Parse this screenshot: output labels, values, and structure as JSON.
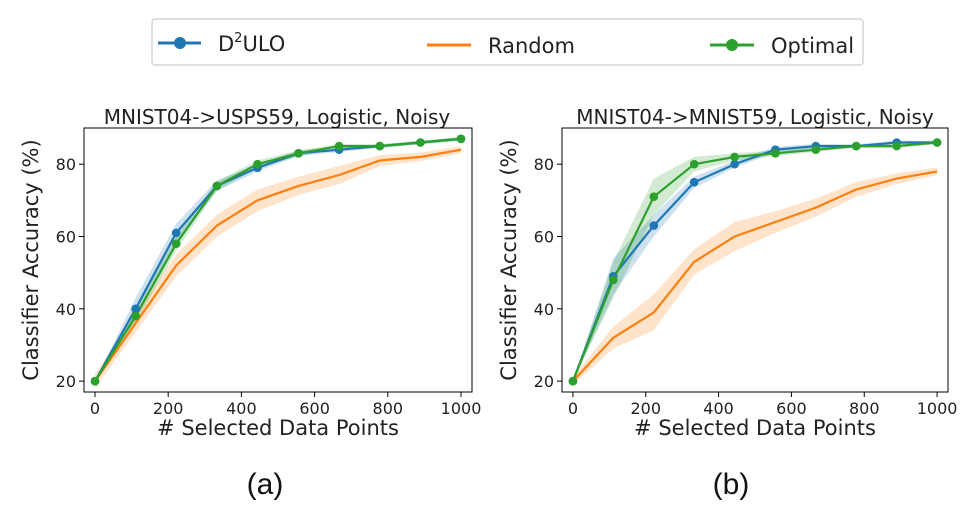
{
  "legend": {
    "items": [
      {
        "label_base": "D",
        "label_sup": "2",
        "label_rest": "ULO",
        "color": "#1f77b4",
        "marker": true
      },
      {
        "label": "Random",
        "color": "#ff7f0e",
        "marker": false
      },
      {
        "label": "Optimal",
        "color": "#2ca02c",
        "marker": true
      }
    ]
  },
  "colors": {
    "d2ulo": "#1f77b4",
    "random": "#ff7f0e",
    "optimal": "#2ca02c"
  },
  "chart_data": [
    {
      "type": "line",
      "title": "MNIST04->USPS59, Logistic, Noisy",
      "xlabel": "# Selected Data Points",
      "ylabel": "Classifier Accuracy (%)",
      "caption": "(a)",
      "xlim": [
        -30,
        1030
      ],
      "ylim": [
        17,
        90
      ],
      "xticks": [
        0,
        200,
        400,
        600,
        800,
        1000
      ],
      "yticks": [
        20,
        40,
        60,
        80
      ],
      "series": [
        {
          "name": "Random",
          "key": "random",
          "markers": false,
          "x": [
            0,
            111,
            222,
            333,
            444,
            556,
            667,
            778,
            889,
            1000
          ],
          "y": [
            20,
            36,
            52,
            63,
            70,
            74,
            77,
            81,
            82,
            84
          ],
          "band": [
            2,
            2.5,
            3,
            3,
            3,
            2.5,
            2.5,
            1.5,
            1.2,
            1
          ]
        },
        {
          "name": "D2ULO",
          "key": "d2ulo",
          "markers": true,
          "x": [
            0,
            111,
            222,
            333,
            444,
            556,
            667,
            778,
            889,
            1000
          ],
          "y": [
            20,
            40,
            61,
            74,
            79,
            83,
            84,
            85,
            86,
            87
          ],
          "band": [
            0,
            3,
            2.5,
            1.5,
            1,
            0.8,
            0.6,
            0.5,
            0.5,
            0.5
          ]
        },
        {
          "name": "Optimal",
          "key": "optimal",
          "markers": true,
          "x": [
            0,
            111,
            222,
            333,
            444,
            556,
            667,
            778,
            889,
            1000
          ],
          "y": [
            20,
            38,
            58,
            74,
            80,
            83,
            85,
            85,
            86,
            87
          ],
          "band": [
            0,
            2,
            2,
            1.2,
            1,
            0.8,
            0.6,
            0.5,
            0.5,
            0.5
          ]
        }
      ]
    },
    {
      "type": "line",
      "title": "MNIST04->MNIST59, Logistic, Noisy",
      "xlabel": "# Selected Data Points",
      "ylabel": "Classifier Accuracy (%)",
      "caption": "(b)",
      "xlim": [
        -30,
        1030
      ],
      "ylim": [
        17,
        90
      ],
      "xticks": [
        0,
        200,
        400,
        600,
        800,
        1000
      ],
      "yticks": [
        20,
        40,
        60,
        80
      ],
      "series": [
        {
          "name": "Random",
          "key": "random",
          "markers": false,
          "x": [
            0,
            111,
            222,
            333,
            444,
            556,
            667,
            778,
            889,
            1000
          ],
          "y": [
            20,
            32,
            39,
            53,
            60,
            64,
            68,
            73,
            76,
            78
          ],
          "band": [
            1,
            3,
            5,
            3.5,
            4,
            3,
            2.5,
            2,
            1.5,
            1
          ]
        },
        {
          "name": "D2ULO",
          "key": "d2ulo",
          "markers": true,
          "x": [
            0,
            111,
            222,
            333,
            444,
            556,
            667,
            778,
            889,
            1000
          ],
          "y": [
            20,
            49,
            63,
            75,
            80,
            84,
            85,
            85,
            86,
            86
          ],
          "band": [
            0,
            5,
            3,
            1.5,
            1,
            0.8,
            0.6,
            0.5,
            0.5,
            0.5
          ]
        },
        {
          "name": "Optimal",
          "key": "optimal",
          "markers": true,
          "x": [
            0,
            111,
            222,
            333,
            444,
            556,
            667,
            778,
            889,
            1000
          ],
          "y": [
            20,
            48,
            71,
            80,
            82,
            83,
            84,
            85,
            85,
            86
          ],
          "band": [
            0,
            5,
            5,
            2,
            1,
            0.8,
            0.6,
            0.5,
            0.5,
            0.5
          ]
        }
      ]
    }
  ]
}
